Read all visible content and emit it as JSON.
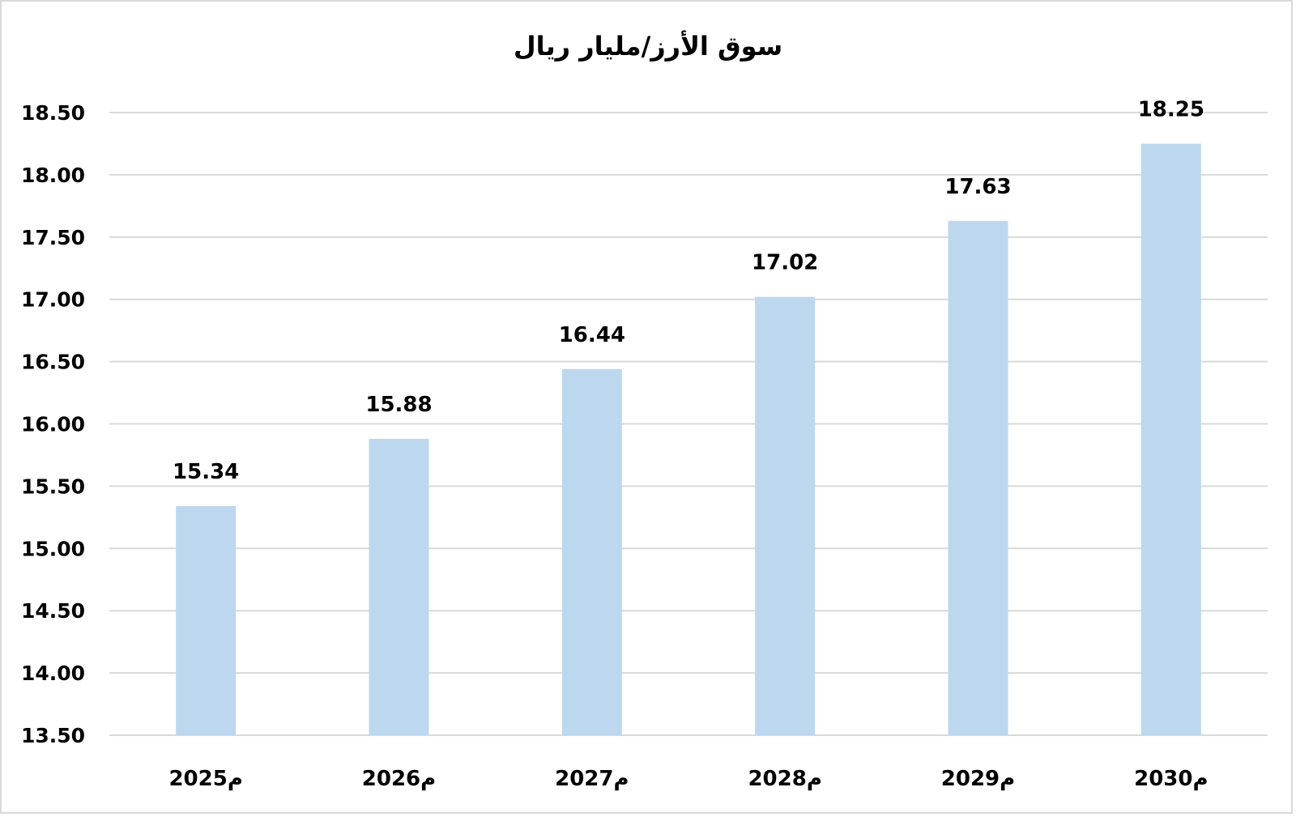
{
  "chart_data": {
    "type": "bar",
    "title": "سوق الأرز/مليار ريال",
    "xlabel": "",
    "ylabel": "",
    "categories": [
      "2025م",
      "2026م",
      "2027م",
      "2028م",
      "2029م",
      "2030م"
    ],
    "values": [
      15.34,
      15.88,
      16.44,
      17.02,
      17.63,
      18.25
    ],
    "value_labels": [
      "15.34",
      "15.88",
      "16.44",
      "17.02",
      "17.63",
      "18.25"
    ],
    "ylim": [
      13.5,
      18.5
    ],
    "yticks": [
      "13.50",
      "14.00",
      "14.50",
      "15.00",
      "15.50",
      "16.00",
      "16.50",
      "17.00",
      "17.50",
      "18.00",
      "18.50"
    ],
    "grid": true,
    "legend": "none",
    "colors": {
      "bar": "#bdd7ee",
      "grid": "#d9d9d9",
      "text": "#000000"
    }
  }
}
